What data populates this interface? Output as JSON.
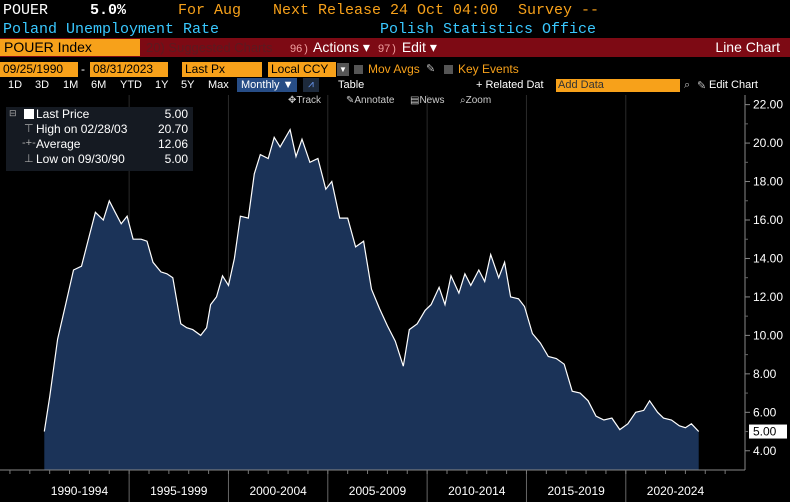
{
  "header": {
    "ticker": "POUER",
    "value": "5.0%",
    "for_label": "For Aug",
    "next_release": "Next Release 24 Oct 04:00",
    "survey": "Survey --",
    "name": "Poland Unemployment Rate",
    "source": "Polish Statistics Office"
  },
  "toolbar": {
    "security": "POUER Index",
    "suggested_num": "20",
    "suggested": "Suggested Charts",
    "actions_num": "96",
    "actions": "Actions ▾",
    "edit_num": "97",
    "edit": "Edit ▾",
    "chart_type": "Line Chart"
  },
  "range": {
    "start_date": "09/25/1990",
    "end_date": "08/31/2023",
    "field": "Last Px",
    "currency": "Local CCY",
    "mov_avgs": "Mov Avgs",
    "key_events": "Key Events"
  },
  "periods": [
    "1D",
    "3D",
    "1M",
    "6M",
    "YTD",
    "1Y",
    "5Y",
    "Max"
  ],
  "frequency": "Monthly ▼",
  "table_label": "Table",
  "related_data": "+ Related Dat",
  "add_data_placeholder": "Add Data",
  "edit_chart": "Edit Chart",
  "chart_tools": [
    "Track",
    "Annotate",
    "News",
    "Zoom"
  ],
  "legend": {
    "last_price_label": "Last Price",
    "last_price_value": "5.00",
    "high_label": "High on 02/28/03",
    "high_value": "20.70",
    "average_label": "Average",
    "average_value": "12.06",
    "low_label": "Low on 09/30/90",
    "low_value": "5.00"
  },
  "colors": {
    "accent_orange": "#f7a11a",
    "bar_red": "#7d0a14",
    "title_cyan": "#39c8ff",
    "area_fill": "#1b3358",
    "line": "#ffffff"
  },
  "chart_data": {
    "type": "area",
    "ylim": [
      3.0,
      22.5
    ],
    "yticks": [
      "22.00",
      "20.00",
      "18.00",
      "16.00",
      "14.00",
      "12.00",
      "10.00",
      "8.00",
      "6.00",
      "4.00"
    ],
    "x_categories": [
      "1990-1994",
      "1995-1999",
      "2000-2004",
      "2005-2009",
      "2010-2014",
      "2015-2019",
      "2020-2024"
    ],
    "last_value_label": "5.00",
    "series": [
      {
        "x": [
          1990.73,
          1991.0,
          1991.4,
          1991.8,
          1992.2,
          1992.6,
          1993.0,
          1993.3,
          1993.7,
          1994.0,
          1994.3,
          1994.6,
          1994.9,
          1995.2,
          1995.6,
          1995.9,
          1996.2,
          1996.6,
          1996.9,
          1997.2,
          1997.6,
          1997.9,
          1998.2,
          1998.6,
          1998.9,
          1999.1,
          1999.4,
          1999.7,
          2000.0,
          2000.3,
          2000.6,
          2001.0,
          2001.3,
          2001.6,
          2002.0,
          2002.3,
          2002.6,
          2003.1,
          2003.4,
          2003.7,
          2004.1,
          2004.5,
          2004.9,
          2005.2,
          2005.6,
          2006.0,
          2006.4,
          2006.8,
          2007.2,
          2007.6,
          2008.0,
          2008.4,
          2008.8,
          2009.1,
          2009.5,
          2009.9,
          2010.2,
          2010.6,
          2010.9,
          2011.2,
          2011.6,
          2011.9,
          2012.2,
          2012.6,
          2012.9,
          2013.2,
          2013.6,
          2013.9,
          2014.2,
          2014.6,
          2014.9,
          2015.3,
          2015.7,
          2016.1,
          2016.5,
          2016.9,
          2017.3,
          2017.7,
          2018.1,
          2018.5,
          2018.9,
          2019.3,
          2019.7,
          2020.1,
          2020.5,
          2020.9,
          2021.2,
          2021.6,
          2021.9,
          2022.3,
          2022.7,
          2023.0,
          2023.3,
          2023.67
        ],
        "values": [
          5.0,
          6.8,
          9.8,
          11.6,
          13.4,
          13.6,
          15.2,
          16.4,
          16.0,
          17.0,
          16.4,
          15.8,
          16.2,
          15.0,
          15.0,
          14.9,
          13.8,
          13.3,
          13.2,
          13.0,
          10.6,
          10.4,
          10.3,
          10.0,
          10.4,
          11.6,
          12.0,
          13.1,
          12.6,
          14.0,
          16.2,
          16.1,
          18.4,
          19.4,
          19.2,
          20.3,
          19.8,
          20.7,
          19.3,
          20.2,
          19.0,
          19.2,
          17.6,
          18.0,
          16.1,
          16.1,
          14.6,
          14.9,
          12.4,
          11.4,
          10.5,
          9.7,
          8.4,
          10.3,
          10.6,
          11.3,
          11.6,
          12.5,
          11.6,
          13.1,
          12.2,
          13.2,
          12.6,
          13.4,
          12.8,
          14.2,
          13.0,
          13.8,
          12.0,
          11.9,
          11.5,
          10.1,
          9.6,
          8.9,
          8.8,
          8.5,
          7.1,
          7.0,
          6.6,
          5.8,
          5.6,
          5.7,
          5.1,
          5.4,
          6.0,
          6.1,
          6.6,
          6.0,
          5.7,
          5.6,
          5.3,
          5.2,
          5.4,
          5.0
        ]
      }
    ]
  }
}
